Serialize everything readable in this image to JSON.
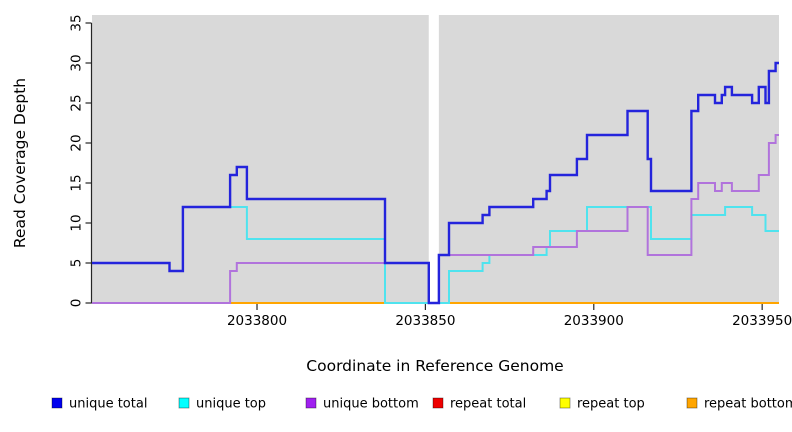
{
  "chart_data": {
    "type": "line",
    "subtype": "step-after",
    "title": "",
    "xlabel": "Coordinate in Reference Genome",
    "ylabel": "Read Coverage Depth",
    "xlim": [
      2033751,
      2033955
    ],
    "ylim": [
      0,
      36
    ],
    "x_ticks": [
      2033800,
      2033850,
      2033900,
      2033950
    ],
    "y_ticks": [
      0,
      5,
      10,
      15,
      20,
      25,
      30,
      35
    ],
    "grid": false,
    "plot_background": "#d9d9d9",
    "gap_region": {
      "x_start": 2033851,
      "x_end": 2033854,
      "color": "#ffffff"
    },
    "legend_position": "bottom",
    "draw_order": [
      "repeat total",
      "repeat top",
      "repeat bottom",
      "unique top",
      "unique bottom",
      "unique total"
    ],
    "series": [
      {
        "name": "unique total",
        "legend_color": "#0000EE",
        "line_color": "#2424DC",
        "line_width": 2.4,
        "points": [
          [
            2033751,
            5
          ],
          [
            2033774,
            4
          ],
          [
            2033778,
            12
          ],
          [
            2033792,
            16
          ],
          [
            2033794,
            17
          ],
          [
            2033797,
            13
          ],
          [
            2033838,
            5
          ],
          [
            2033851,
            0
          ],
          [
            2033854,
            6
          ],
          [
            2033857,
            10
          ],
          [
            2033867,
            11
          ],
          [
            2033869,
            12
          ],
          [
            2033882,
            13
          ],
          [
            2033886,
            14
          ],
          [
            2033887,
            16
          ],
          [
            2033895,
            18
          ],
          [
            2033898,
            21
          ],
          [
            2033910,
            24
          ],
          [
            2033916,
            18
          ],
          [
            2033917,
            14
          ],
          [
            2033929,
            24
          ],
          [
            2033931,
            26
          ],
          [
            2033936,
            25
          ],
          [
            2033938,
            26
          ],
          [
            2033939,
            27
          ],
          [
            2033941,
            26
          ],
          [
            2033947,
            25
          ],
          [
            2033949,
            27
          ],
          [
            2033951,
            25
          ],
          [
            2033952,
            29
          ],
          [
            2033954,
            30
          ]
        ]
      },
      {
        "name": "unique top",
        "legend_color": "#00FFFF",
        "line_color": "#4FE3EE",
        "line_width": 2,
        "points": [
          [
            2033751,
            5
          ],
          [
            2033774,
            4
          ],
          [
            2033778,
            12
          ],
          [
            2033797,
            8
          ],
          [
            2033838,
            0
          ],
          [
            2033857,
            4
          ],
          [
            2033867,
            5
          ],
          [
            2033869,
            6
          ],
          [
            2033886,
            7
          ],
          [
            2033887,
            9
          ],
          [
            2033898,
            12
          ],
          [
            2033917,
            8
          ],
          [
            2033929,
            11
          ],
          [
            2033939,
            12
          ],
          [
            2033947,
            11
          ],
          [
            2033951,
            9
          ]
        ]
      },
      {
        "name": "unique bottom",
        "legend_color": "#A020F0",
        "line_color": "#B173DC",
        "line_width": 2,
        "points": [
          [
            2033751,
            0
          ],
          [
            2033792,
            4
          ],
          [
            2033794,
            5
          ],
          [
            2033851,
            0
          ],
          [
            2033854,
            6
          ],
          [
            2033882,
            7
          ],
          [
            2033895,
            9
          ],
          [
            2033910,
            12
          ],
          [
            2033916,
            6
          ],
          [
            2033929,
            13
          ],
          [
            2033931,
            15
          ],
          [
            2033936,
            14
          ],
          [
            2033938,
            15
          ],
          [
            2033941,
            14
          ],
          [
            2033949,
            16
          ],
          [
            2033952,
            20
          ],
          [
            2033954,
            21
          ]
        ]
      },
      {
        "name": "repeat total",
        "legend_color": "#EE0000",
        "line_color": "#E8327A",
        "line_width": 2,
        "points": [
          [
            2033751,
            0
          ]
        ]
      },
      {
        "name": "repeat top",
        "legend_color": "#FFFF00",
        "line_color": "#FFFF00",
        "line_width": 2,
        "points": [
          [
            2033751,
            0
          ]
        ]
      },
      {
        "name": "repeat bottom",
        "legend_color": "#FFA500",
        "line_color": "#FFA500",
        "line_width": 2,
        "points": [
          [
            2033751,
            0
          ]
        ]
      }
    ]
  }
}
